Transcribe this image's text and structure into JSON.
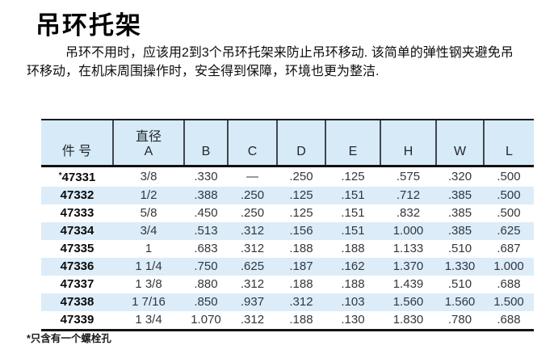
{
  "page": {
    "title": "吊环托架",
    "intro_lines": [
      "吊环不用时，应该用2到3个吊环托架来防止吊环移动. 该简单的弹性钢夹避免吊",
      "环移动，在机床周围操作时，安全得到保障，环境也更为整洁."
    ],
    "footnote": "*只含有一个螺栓孔"
  },
  "table": {
    "header": {
      "part_label": "件 号",
      "diameter_top": "直径",
      "diameter_bottom": "A",
      "dims": [
        "B",
        "C",
        "D",
        "E",
        "H",
        "W",
        "L"
      ]
    },
    "rows": [
      {
        "part": "*47331",
        "values": [
          "3/8",
          ".330",
          "—",
          ".250",
          ".125",
          ".575",
          ".320",
          ".500"
        ]
      },
      {
        "part": "47332",
        "values": [
          "1/2",
          ".388",
          ".250",
          ".125",
          ".151",
          ".712",
          ".385",
          ".500"
        ]
      },
      {
        "part": "47333",
        "values": [
          "5/8",
          ".450",
          ".250",
          ".125",
          ".151",
          ".832",
          ".385",
          ".500"
        ]
      },
      {
        "part": "47334",
        "values": [
          "3/4",
          ".513",
          ".312",
          ".156",
          ".151",
          "1.000",
          ".385",
          ".625"
        ]
      },
      {
        "part": "47335",
        "values": [
          "1",
          ".683",
          ".312",
          ".188",
          ".188",
          "1.133",
          ".510",
          ".687"
        ]
      },
      {
        "part": "47336",
        "values": [
          "1 1/4",
          ".750",
          ".625",
          ".187",
          ".162",
          "1.370",
          "1.330",
          "1.000"
        ]
      },
      {
        "part": "47337",
        "values": [
          "1 3/8",
          ".880",
          ".312",
          ".188",
          ".188",
          "1.439",
          ".510",
          ".688"
        ]
      },
      {
        "part": "47338",
        "values": [
          "1 7/16",
          ".850",
          ".937",
          ".312",
          ".103",
          "1.560",
          "1.560",
          "1.500"
        ]
      },
      {
        "part": "47339",
        "values": [
          "1 3/4",
          "1.070",
          ".312",
          ".188",
          ".130",
          "1.830",
          ".780",
          ".688"
        ]
      }
    ]
  },
  "colors": {
    "header_bg": "#d6ebf7",
    "stripe_bg": "#dcedf9",
    "rule_dark": "#141414",
    "grid_line": "#40464f"
  }
}
